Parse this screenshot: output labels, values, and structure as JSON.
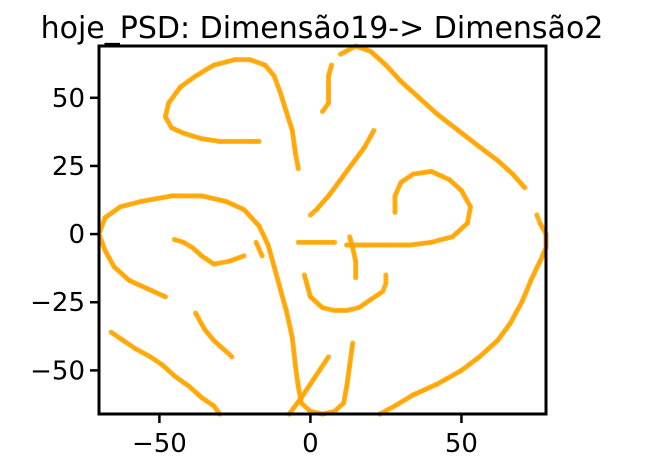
{
  "chart_data": {
    "type": "scatter",
    "title": "hoje_PSD: Dimensão19-> Dimensão2",
    "xlabel": "",
    "ylabel": "",
    "xlim": [
      -70,
      78
    ],
    "ylim": [
      -66,
      69
    ],
    "xticks": [
      -50,
      0,
      50
    ],
    "xtick_labels": [
      "−50",
      "0",
      "50"
    ],
    "yticks": [
      -50,
      -25,
      0,
      25,
      50
    ],
    "ytick_labels": [
      "−50",
      "−25",
      "0",
      "25",
      "50"
    ],
    "grid": false,
    "color": "#FFA500",
    "series": [
      {
        "points": [
          [
            -17,
            34
          ],
          [
            -20,
            34
          ],
          [
            -25,
            34
          ],
          [
            -30,
            34
          ],
          [
            -36,
            35
          ],
          [
            -42,
            37
          ],
          [
            -46,
            39
          ],
          [
            -48,
            43
          ],
          [
            -47,
            48
          ],
          [
            -43,
            54
          ],
          [
            -38,
            58
          ],
          [
            -32,
            62
          ],
          [
            -25,
            64
          ],
          [
            -20,
            64
          ],
          [
            -15,
            62
          ],
          [
            -12,
            58
          ],
          [
            -10,
            52
          ],
          [
            -8,
            45
          ],
          [
            -6,
            38
          ],
          [
            -5,
            30
          ],
          [
            -4,
            24
          ]
        ]
      },
      {
        "points": [
          [
            4,
            45
          ],
          [
            6,
            48
          ],
          [
            6,
            53
          ],
          [
            6,
            58
          ],
          [
            7,
            62
          ]
        ]
      },
      {
        "points": [
          [
            10,
            66
          ],
          [
            15,
            69
          ],
          [
            20,
            67
          ],
          [
            25,
            62
          ],
          [
            30,
            56
          ],
          [
            36,
            50
          ],
          [
            42,
            44
          ],
          [
            49,
            38
          ],
          [
            56,
            32
          ],
          [
            62,
            27
          ],
          [
            67,
            22
          ],
          [
            71,
            17
          ]
        ]
      },
      {
        "points": [
          [
            -22,
            -8
          ],
          [
            -27,
            -10
          ],
          [
            -32,
            -11
          ],
          [
            -36,
            -8
          ],
          [
            -39,
            -5
          ],
          [
            -42,
            -3
          ],
          [
            -45,
            -2
          ]
        ]
      },
      {
        "points": [
          [
            -48,
            -23
          ],
          [
            -54,
            -20
          ],
          [
            -60,
            -17
          ],
          [
            -65,
            -12
          ],
          [
            -68,
            -6
          ],
          [
            -70,
            0
          ],
          [
            -68,
            6
          ],
          [
            -63,
            10
          ],
          [
            -56,
            12
          ],
          [
            -46,
            14
          ],
          [
            -36,
            14
          ],
          [
            -28,
            12
          ],
          [
            -22,
            9
          ],
          [
            -17,
            3
          ],
          [
            -14,
            -4
          ],
          [
            -12,
            -12
          ],
          [
            -10,
            -20
          ],
          [
            -8,
            -28
          ],
          [
            -6,
            -38
          ],
          [
            -5,
            -48
          ],
          [
            -4,
            -56
          ],
          [
            -3,
            -62
          ],
          [
            0,
            -65
          ],
          [
            4,
            -66
          ],
          [
            8,
            -65
          ],
          [
            11,
            -62
          ],
          [
            12,
            -56
          ],
          [
            13,
            -48
          ],
          [
            14,
            -40
          ]
        ]
      },
      {
        "points": [
          [
            -18,
            -3
          ],
          [
            -16,
            -8
          ]
        ]
      },
      {
        "points": [
          [
            21,
            38
          ],
          [
            18,
            32
          ],
          [
            14,
            26
          ],
          [
            10,
            20
          ],
          [
            6,
            14
          ],
          [
            2,
            9
          ],
          [
            0,
            7
          ]
        ]
      },
      {
        "points": [
          [
            -4,
            -3
          ],
          [
            0,
            -3
          ],
          [
            4,
            -3
          ],
          [
            8,
            -3
          ]
        ]
      },
      {
        "points": [
          [
            13,
            -1
          ],
          [
            14,
            -5
          ],
          [
            15,
            -10
          ],
          [
            15,
            -16
          ]
        ]
      },
      {
        "points": [
          [
            28,
            8
          ],
          [
            28,
            14
          ],
          [
            30,
            19
          ],
          [
            34,
            22
          ],
          [
            40,
            23
          ],
          [
            46,
            20
          ],
          [
            50,
            16
          ],
          [
            53,
            10
          ],
          [
            52,
            4
          ],
          [
            47,
            -1
          ],
          [
            40,
            -3
          ],
          [
            33,
            -4
          ],
          [
            26,
            -4
          ],
          [
            20,
            -4
          ],
          [
            12,
            -4
          ]
        ]
      },
      {
        "points": [
          [
            -2,
            -15
          ],
          [
            0,
            -23
          ],
          [
            4,
            -27
          ],
          [
            8,
            -28
          ],
          [
            12,
            -28
          ],
          [
            16,
            -27
          ],
          [
            20,
            -24
          ],
          [
            24,
            -21
          ],
          [
            25,
            -18
          ],
          [
            25,
            -15
          ]
        ]
      },
      {
        "points": [
          [
            -38,
            -29
          ],
          [
            -35,
            -35
          ],
          [
            -32,
            -39
          ],
          [
            -28,
            -43
          ],
          [
            -26,
            -45
          ]
        ]
      },
      {
        "points": [
          [
            -66,
            -36
          ],
          [
            -62,
            -39
          ],
          [
            -58,
            -42
          ],
          [
            -53,
            -45
          ],
          [
            -49,
            -48
          ],
          [
            -45,
            -52
          ],
          [
            -40,
            -56
          ],
          [
            -36,
            -60
          ],
          [
            -32,
            -63
          ],
          [
            -30,
            -66
          ]
        ]
      },
      {
        "points": [
          [
            -7,
            -66
          ],
          [
            -3,
            -60
          ],
          [
            0,
            -55
          ],
          [
            3,
            -50
          ],
          [
            6,
            -45
          ]
        ]
      },
      {
        "points": [
          [
            23,
            -66
          ],
          [
            28,
            -63
          ],
          [
            34,
            -59
          ],
          [
            42,
            -55
          ],
          [
            50,
            -50
          ],
          [
            56,
            -45
          ],
          [
            62,
            -39
          ],
          [
            66,
            -33
          ],
          [
            70,
            -25
          ],
          [
            73,
            -17
          ],
          [
            76,
            -10
          ],
          [
            78,
            -5
          ],
          [
            78,
            0
          ],
          [
            76,
            4
          ],
          [
            75,
            7
          ]
        ]
      }
    ]
  }
}
